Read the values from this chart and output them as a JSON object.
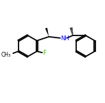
{
  "bg_color": "#ffffff",
  "bond_color": "#000000",
  "F_color": "#33cc00",
  "N_color": "#0000ff",
  "figsize": [
    1.52,
    1.52
  ],
  "dpi": 100,
  "ring_r": 16,
  "lw": 1.3
}
